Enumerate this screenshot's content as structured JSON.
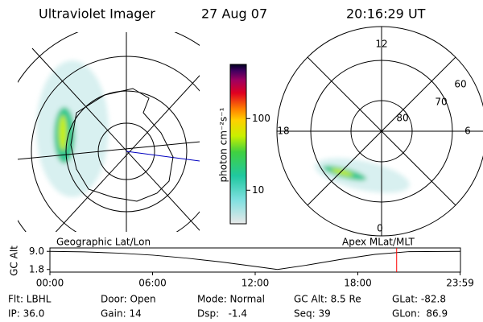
{
  "header": {
    "instrument": "Ultraviolet Imager",
    "date": "27 Aug 07",
    "time": "20:16:29 UT"
  },
  "colorbar": {
    "label": "photon cm⁻²s⁻¹",
    "scale": "log",
    "lim": [
      3.4,
      570
    ],
    "ticks": [
      10,
      100
    ]
  },
  "polar": {
    "mlt_labels": {
      "top": "12",
      "bottom": "0",
      "left": "18",
      "right": "6"
    },
    "lat_labels": [
      "60",
      "70",
      "80"
    ]
  },
  "strip": {
    "left_title": "Geographic Lat/Lon",
    "right_title": "Apex MLat/MLT",
    "axis_label": "GC Alt",
    "ylim": [
      1.4,
      9.4
    ],
    "yticks": [
      {
        "value": 9.0,
        "label": "9.0"
      },
      {
        "value": 1.8,
        "label": "1.8"
      }
    ],
    "xlim": [
      0,
      24
    ],
    "xticks": [
      {
        "value": 0,
        "label": "00:00"
      },
      {
        "value": 6,
        "label": "06:00"
      },
      {
        "value": 12,
        "label": "12:00"
      },
      {
        "value": 18,
        "label": "18:00"
      },
      {
        "value": 23.98,
        "label": "23:59"
      }
    ],
    "x": [
      0,
      2,
      4,
      6,
      8,
      10,
      12,
      13.3,
      15,
      17,
      19,
      21,
      23.98
    ],
    "values": [
      9.0,
      8.8,
      8.3,
      7.5,
      6.3,
      4.8,
      3.0,
      1.8,
      3.5,
      5.8,
      7.8,
      8.9,
      9.0
    ],
    "current": 20.27,
    "current_color": "#ff0000"
  },
  "footer": {
    "rows": [
      [
        "Flt: LBHL",
        "Door: Open",
        "Mode: Normal",
        "GC Alt: 8.5 Re",
        "GLat: -82.8"
      ],
      [
        "IP: 36.0",
        "Gain: 14",
        "Dsp:   -1.4",
        "Seq: 39",
        "GLon:  86.9"
      ]
    ]
  }
}
